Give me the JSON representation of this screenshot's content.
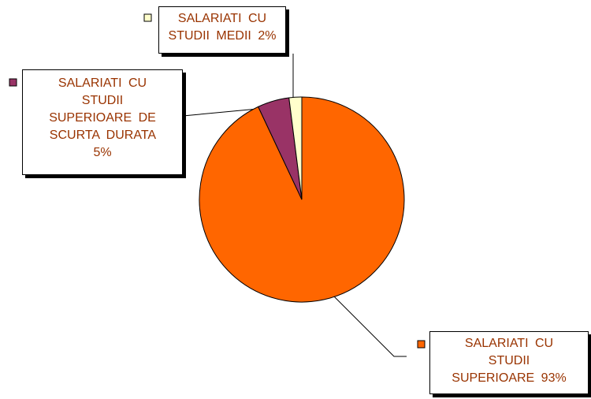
{
  "chart_data": {
    "type": "pie",
    "categories": [
      "SALARIATI CU STUDII SUPERIOARE",
      "SALARIATI CU STUDII SUPERIOARE DE SCURTA DURATA",
      "SALARIATI CU STUDII MEDII"
    ],
    "values": [
      93,
      5,
      2
    ],
    "value_labels": [
      "93%",
      "5%",
      "2%"
    ],
    "colors": [
      "#ff6600",
      "#993366",
      "#ffffcc"
    ]
  }
}
